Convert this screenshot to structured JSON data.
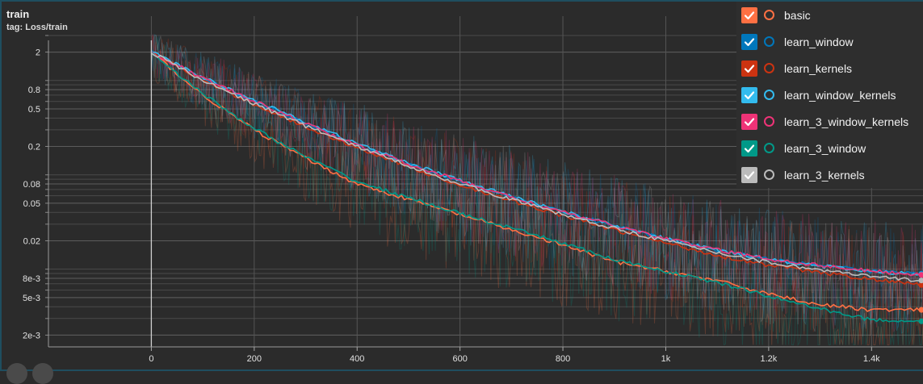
{
  "header": {
    "title": "train",
    "subtitle": "tag: Loss/train"
  },
  "chart_data": {
    "type": "line",
    "title": "train",
    "subtitle": "tag: Loss/train",
    "xlabel": "",
    "ylabel": "",
    "x_scale": "linear",
    "y_scale": "log",
    "xlim": [
      -200,
      1500
    ],
    "ylim": [
      0.0015,
      3.0
    ],
    "x_ticks": [
      0,
      200,
      400,
      600,
      800,
      1000,
      1200,
      1400
    ],
    "x_tick_labels": [
      "0",
      "200",
      "400",
      "600",
      "800",
      "1k",
      "1.2k",
      "1.4k"
    ],
    "y_ticks": [
      2,
      0.8,
      0.5,
      0.2,
      0.08,
      0.05,
      0.02,
      0.008,
      0.005,
      0.002
    ],
    "y_tick_labels": [
      "2",
      "0.8",
      "0.5",
      "0.2",
      "0.08",
      "0.05",
      "0.02",
      "8e-3",
      "5e-3",
      "2e-3"
    ],
    "grid": true,
    "legend_position": "top-right",
    "series": [
      {
        "name": "basic",
        "color": "#ff7043",
        "checked": true,
        "x": [
          0,
          100,
          200,
          300,
          400,
          500,
          600,
          700,
          800,
          900,
          1000,
          1100,
          1200,
          1300,
          1400,
          1500
        ],
        "y": [
          2.0,
          0.7,
          0.3,
          0.15,
          0.08,
          0.055,
          0.038,
          0.026,
          0.018,
          0.012,
          0.0095,
          0.0075,
          0.0055,
          0.0042,
          0.0037,
          0.0037
        ]
      },
      {
        "name": "learn_window",
        "color": "#0077bb",
        "checked": true,
        "x": [
          0,
          100,
          200,
          300,
          400,
          500,
          600,
          700,
          800,
          900,
          1000,
          1100,
          1200,
          1300,
          1400,
          1500
        ],
        "y": [
          2.0,
          1.05,
          0.6,
          0.35,
          0.21,
          0.13,
          0.085,
          0.058,
          0.04,
          0.029,
          0.021,
          0.016,
          0.013,
          0.011,
          0.0095,
          0.009
        ]
      },
      {
        "name": "learn_kernels",
        "color": "#cc3311",
        "checked": true,
        "x": [
          0,
          100,
          200,
          300,
          400,
          500,
          600,
          700,
          800,
          900,
          1000,
          1100,
          1200,
          1300,
          1400,
          1500
        ],
        "y": [
          2.0,
          1.0,
          0.56,
          0.32,
          0.195,
          0.122,
          0.078,
          0.053,
          0.037,
          0.026,
          0.019,
          0.014,
          0.011,
          0.0092,
          0.0078,
          0.0068
        ]
      },
      {
        "name": "learn_window_kernels",
        "color": "#33bbee",
        "checked": true,
        "x": [
          0,
          100,
          200,
          300,
          400,
          500,
          600,
          700,
          800,
          900,
          1000,
          1100,
          1200,
          1300,
          1400,
          1500
        ],
        "y": [
          2.0,
          1.08,
          0.62,
          0.36,
          0.215,
          0.133,
          0.087,
          0.059,
          0.041,
          0.029,
          0.021,
          0.016,
          0.0128,
          0.0108,
          0.0094,
          0.0088
        ]
      },
      {
        "name": "learn_3_window_kernels",
        "color": "#ee3377",
        "checked": true,
        "x": [
          0,
          100,
          200,
          300,
          400,
          500,
          600,
          700,
          800,
          900,
          1000,
          1100,
          1200,
          1300,
          1400,
          1500
        ],
        "y": [
          2.0,
          1.06,
          0.6,
          0.35,
          0.205,
          0.13,
          0.086,
          0.058,
          0.04,
          0.029,
          0.021,
          0.016,
          0.0128,
          0.011,
          0.0095,
          0.0087
        ]
      },
      {
        "name": "learn_3_window",
        "color": "#009988",
        "checked": true,
        "x": [
          0,
          100,
          200,
          300,
          400,
          500,
          600,
          700,
          800,
          900,
          1000,
          1100,
          1200,
          1300,
          1400,
          1500
        ],
        "y": [
          2.0,
          0.72,
          0.31,
          0.155,
          0.085,
          0.057,
          0.039,
          0.027,
          0.019,
          0.0125,
          0.0095,
          0.0072,
          0.0052,
          0.0038,
          0.0029,
          0.0028
        ]
      },
      {
        "name": "learn_3_kernels",
        "color": "#bbbbbb",
        "checked": true,
        "x": [
          0,
          100,
          200,
          300,
          400,
          500,
          600,
          700,
          800,
          900,
          1000,
          1100,
          1200,
          1300,
          1400,
          1500
        ],
        "y": [
          2.0,
          1.0,
          0.57,
          0.33,
          0.2,
          0.125,
          0.08,
          0.055,
          0.038,
          0.027,
          0.02,
          0.015,
          0.0118,
          0.0098,
          0.0083,
          0.0076
        ]
      }
    ]
  }
}
